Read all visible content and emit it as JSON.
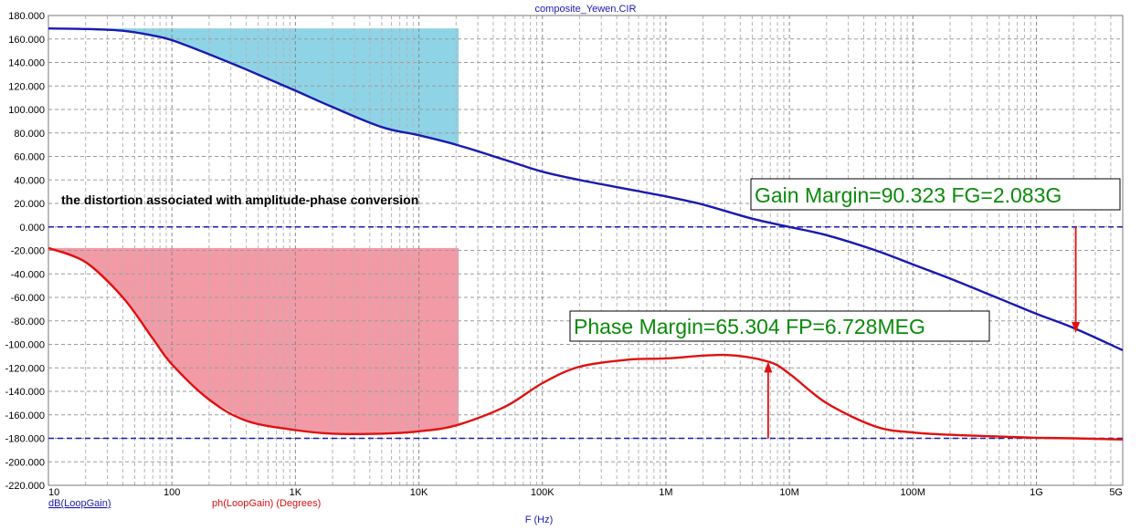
{
  "chart_data": {
    "type": "line",
    "title": "composite_Yewen.CIR",
    "xlabel": "F (Hz)",
    "x_scale": "log",
    "xlim": [
      10,
      5000000000
    ],
    "ylim": [
      -220,
      180
    ],
    "grid": true,
    "x_ticks": [
      {
        "value": 10,
        "label": "10"
      },
      {
        "value": 100,
        "label": "100"
      },
      {
        "value": 1000,
        "label": "1K"
      },
      {
        "value": 10000,
        "label": "10K"
      },
      {
        "value": 100000,
        "label": "100K"
      },
      {
        "value": 1000000,
        "label": "1M"
      },
      {
        "value": 10000000,
        "label": "10M"
      },
      {
        "value": 100000000,
        "label": "100M"
      },
      {
        "value": 1000000000,
        "label": "1G"
      },
      {
        "value": 5000000000,
        "label": "5G"
      }
    ],
    "y_ticks": [
      {
        "value": 180,
        "label": "180.000"
      },
      {
        "value": 160,
        "label": "160.000"
      },
      {
        "value": 140,
        "label": "140.000"
      },
      {
        "value": 120,
        "label": "120.000"
      },
      {
        "value": 100,
        "label": "100.000"
      },
      {
        "value": 80,
        "label": "80.000"
      },
      {
        "value": 60,
        "label": "60.000"
      },
      {
        "value": 40,
        "label": "40.000"
      },
      {
        "value": 20,
        "label": "20.000"
      },
      {
        "value": 0,
        "label": "0.000"
      },
      {
        "value": -20,
        "label": "-20.000"
      },
      {
        "value": -40,
        "label": "-40.000"
      },
      {
        "value": -60,
        "label": "-60.000"
      },
      {
        "value": -80,
        "label": "-80.000"
      },
      {
        "value": -100,
        "label": "-100.000"
      },
      {
        "value": -120,
        "label": "-120.000"
      },
      {
        "value": -140,
        "label": "-140.000"
      },
      {
        "value": -160,
        "label": "-160.000"
      },
      {
        "value": -180,
        "label": "-180.000"
      },
      {
        "value": -200,
        "label": "-200.000"
      },
      {
        "value": -220,
        "label": "-220.000"
      }
    ],
    "reference_lines": [
      {
        "y": 0,
        "color": "#1a1ab0"
      },
      {
        "y": -180,
        "color": "#1a1ab0"
      }
    ],
    "series": [
      {
        "name": "dB(LoopGain)",
        "color": "#1a1ab0",
        "x": [
          10,
          20,
          40,
          70,
          100,
          200,
          400,
          1000,
          2000,
          5000,
          10000,
          20000,
          50000,
          100000,
          200000,
          500000,
          1000000,
          2000000,
          5000000,
          10000000,
          20000000,
          50000000,
          100000000,
          200000000,
          500000000,
          1000000000,
          2000000000,
          5000000000
        ],
        "values": [
          169,
          168.5,
          167,
          163,
          159,
          147,
          134,
          116,
          102,
          85,
          78,
          70,
          57,
          47,
          40,
          32,
          26,
          19,
          7,
          0,
          -7,
          -20,
          -32,
          -44,
          -61,
          -74,
          -86,
          -105
        ]
      },
      {
        "name": "ph(LoopGain) (Degrees)",
        "color": "#e01010",
        "x": [
          10,
          20,
          40,
          70,
          100,
          200,
          400,
          1000,
          2000,
          5000,
          10000,
          20000,
          50000,
          100000,
          200000,
          500000,
          1000000,
          3000000,
          6728000,
          10000000,
          20000000,
          50000000,
          100000000,
          200000000,
          500000000,
          1000000000,
          2000000000,
          5000000000
        ],
        "values": [
          -18,
          -30,
          -60,
          -95,
          -117,
          -147,
          -165,
          -173,
          -176,
          -176,
          -174,
          -169,
          -153,
          -133,
          -119,
          -113,
          -112,
          -109,
          -114.7,
          -125,
          -150,
          -170,
          -175,
          -177,
          -178.5,
          -179.5,
          -180,
          -181
        ]
      }
    ],
    "shaded_regions": [
      {
        "series": "dB(LoopGain)",
        "x_from": 10,
        "x_to": 21000,
        "y_top": 169,
        "color": "#8fd3e6"
      },
      {
        "series": "ph(LoopGain) (Degrees)",
        "x_from": 10,
        "x_to": 21000,
        "y_top": -18,
        "color": "#f29aa6"
      }
    ],
    "annotations": [
      {
        "text": "the distortion associated with amplitude-phase conversion"
      },
      {
        "text": "Gain Margin=90.323 FG=2.083G",
        "arrow_x": 2083000000,
        "arrow_y_from": 0,
        "arrow_y_to": -90.323
      },
      {
        "text": "Phase Margin=65.304 FP=6.728MEG",
        "arrow_x": 6728000,
        "arrow_y_from": -180,
        "arrow_y_to": -114.696
      }
    ]
  }
}
